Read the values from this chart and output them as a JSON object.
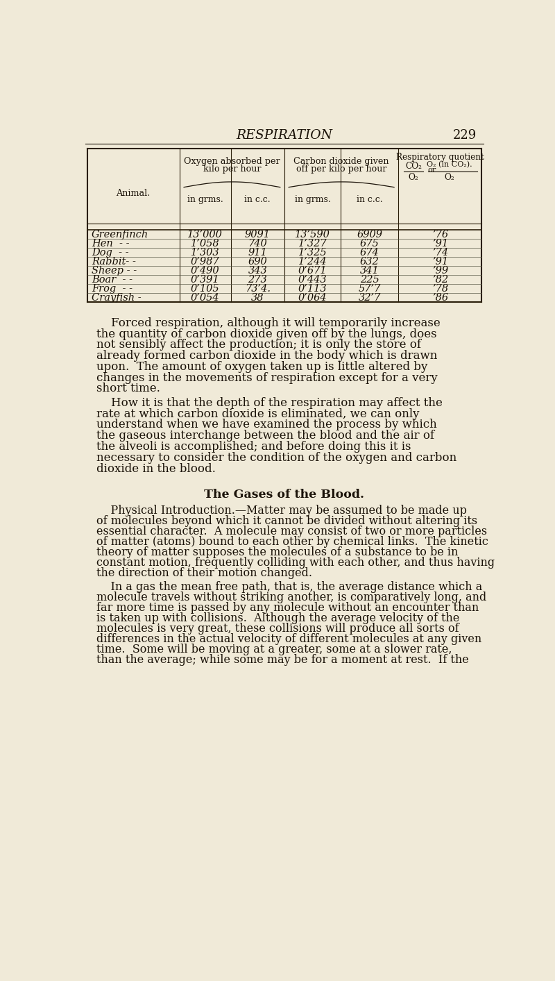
{
  "bg_color": "#f0ead8",
  "page_title": "RESPIRATION",
  "page_number": "229",
  "text_color": "#1a1208",
  "table_rows": [
    [
      "Greenfinch",
      "13’000",
      "9091",
      "13’590",
      "6909",
      "’76"
    ],
    [
      "Hen  - -",
      "1’058",
      "740",
      "1’327",
      "675",
      "’91"
    ],
    [
      "Dog  - -",
      "1’303",
      "911",
      "1’325",
      "674",
      "’74"
    ],
    [
      "Rabbit- -",
      "0’987",
      "690",
      "1’244",
      "632",
      "’91"
    ],
    [
      "Sheep - -",
      "0’490",
      "343",
      "0’671",
      "341",
      "’99"
    ],
    [
      "Boar  - -",
      "0’391",
      "273",
      "0’443",
      "225",
      "’82"
    ],
    [
      "Frog  - -",
      "0’105",
      "73’4.",
      "0’113",
      "57’7",
      "’78"
    ],
    [
      "Crayfish -",
      "0’054",
      "38",
      "0’064",
      "32’7",
      "’86"
    ]
  ],
  "body_text_1": "    Forced respiration, although it will temporarily increase the quantity of carbon dioxide given off by the lungs, does not sensibly affect the production; it is only the store of already formed carbon dioxide in the body which is drawn upon.  The amount of oxygen taken up is little altered by changes in the movements of respiration except for a very short time.",
  "body_text_2": "    How it is that the depth of the respiration may affect the rate at which carbon dioxide is eliminated, we can only understand when we have examined the process by which the gaseous interchange between the blood and the air of the alveoli is accomplished; and before doing this it is necessary to consider the condition of the oxygen and carbon dioxide in the blood.",
  "section_heading": "The Gases of the Blood.",
  "section_text_1": "    Physical Introduction.—Matter may be assumed to be made up of molecules beyond which it cannot be divided without altering its essential character.  A molecule may consist of two or more particles of matter (atoms) bound to each other by chemical links.  The kinetic theory of matter supposes the molecules of a substance to be in constant motion, frequently colliding with each other, and thus having the direction of their motion changed.",
  "section_text_2": "    In a gas the mean free path, that is, the average distance which a molecule travels without striking another, is comparatively long, and far more time is passed by any molecule without an encounter than is taken up with collisions.  Although the average velocity of the molecules is very great, these collisions will produce all sorts of differences in the actual velocity of different molecules at any given time.  Some will be moving at a greater, some at a slower rate, than the average; while some may be for a moment at rest.  If the"
}
